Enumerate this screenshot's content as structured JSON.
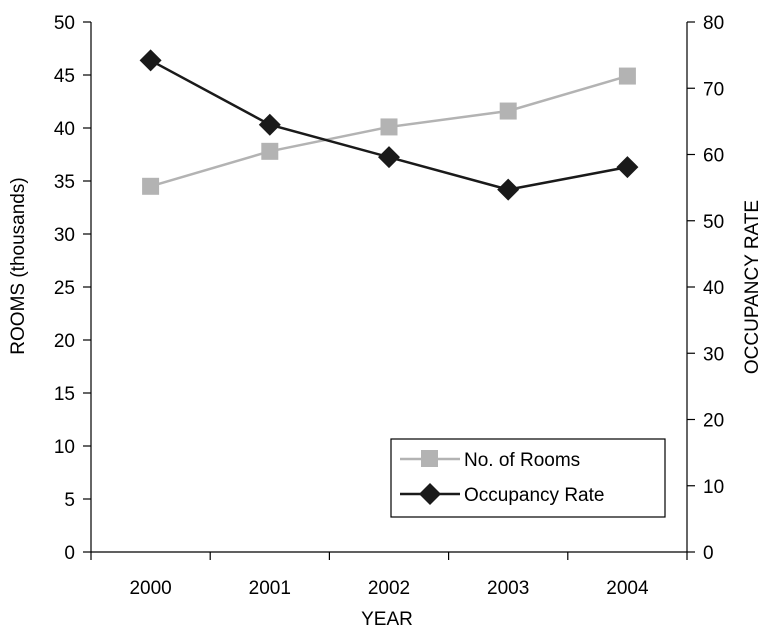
{
  "chart_data": {
    "type": "line",
    "x": [
      "2000",
      "2001",
      "2002",
      "2003",
      "2004"
    ],
    "xlabel": "YEAR",
    "ylabel": "ROOMS (thousands)",
    "y2label": "OCCUPANCY RATE",
    "ylim": [
      0,
      50
    ],
    "y2lim": [
      0,
      80
    ],
    "yticks": [
      "0",
      "5",
      "10",
      "15",
      "20",
      "25",
      "30",
      "35",
      "40",
      "45",
      "50"
    ],
    "y2ticks": [
      "0",
      "10",
      "20",
      "30",
      "40",
      "50",
      "60",
      "70",
      "80"
    ],
    "grid": false,
    "legend_position": "bottom-right",
    "series": [
      {
        "name": "No. of Rooms",
        "axis": "left",
        "marker": "square",
        "color": "#b3b3b3",
        "values": [
          34.5,
          37.8,
          40.1,
          41.6,
          44.9
        ]
      },
      {
        "name": "Occupancy Rate",
        "axis": "right",
        "marker": "diamond",
        "color": "#1a1a1a",
        "values": [
          74.2,
          64.5,
          59.6,
          54.7,
          58.1
        ]
      }
    ]
  }
}
